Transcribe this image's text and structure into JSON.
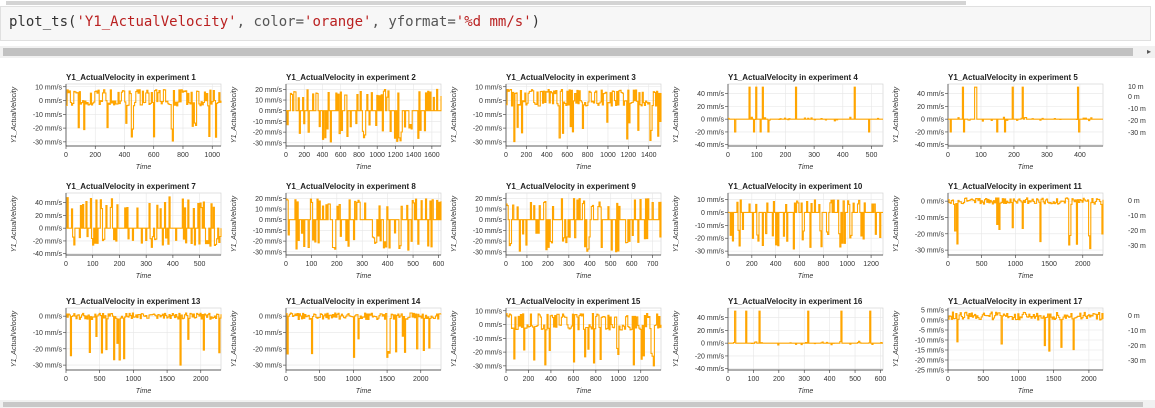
{
  "code_cell": {
    "fn": "plot_ts(",
    "arg1": "'Y1_ActualVelocity'",
    "sep1": ", color=",
    "arg2": "'orange'",
    "sep2": ", yformat=",
    "arg3": "'%d mm/s'",
    "end": ")"
  },
  "colors": {
    "line": "#ffa500",
    "grid": "#e6e6e6"
  },
  "chart_data": [
    {
      "type": "line",
      "title": "Y1_ActualVelocity in  experiment 1",
      "xlabel": "Time",
      "ylabel": "Y1_ActualVelocity",
      "xlim": [
        0,
        1060
      ],
      "xticks": [
        0,
        200,
        400,
        600,
        800,
        1000
      ],
      "ylim": [
        -33,
        12
      ],
      "yticks": [
        10,
        0,
        -10,
        -20,
        -30
      ],
      "pattern": "upper",
      "base": 0,
      "hi": 8,
      "lo": -30
    },
    {
      "type": "line",
      "title": "Y1_ActualVelocity in  experiment 2",
      "xlabel": "Time",
      "ylabel": "Y1_ActualVelocity",
      "xlim": [
        0,
        1700
      ],
      "xticks": [
        0,
        200,
        400,
        600,
        800,
        1000,
        1200,
        1400,
        1600
      ],
      "ylim": [
        -33,
        25
      ],
      "yticks": [
        20,
        10,
        0,
        -10,
        -20,
        -30
      ],
      "pattern": "dense",
      "base": 0,
      "hi": 20,
      "lo": -30
    },
    {
      "type": "line",
      "title": "Y1_ActualVelocity in  experiment 3",
      "xlabel": "Time",
      "ylabel": "Y1_ActualVelocity",
      "xlim": [
        0,
        1520
      ],
      "xticks": [
        0,
        200,
        400,
        600,
        800,
        1000,
        1200,
        1400
      ],
      "ylim": [
        -33,
        12
      ],
      "yticks": [
        10,
        0,
        -10,
        -20,
        -30
      ],
      "pattern": "upper",
      "base": 0,
      "hi": 8,
      "lo": -30
    },
    {
      "type": "line",
      "title": "Y1_ActualVelocity in  experiment 4",
      "xlabel": "Time",
      "ylabel": "Y1_ActualVelocity",
      "xlim": [
        0,
        540
      ],
      "xticks": [
        0,
        100,
        200,
        300,
        400,
        500
      ],
      "ylim": [
        -42,
        55
      ],
      "yticks": [
        40,
        20,
        0,
        -20,
        -40
      ],
      "pattern": "flat",
      "base": 0,
      "hi": 50,
      "lo": -20
    },
    {
      "type": "line",
      "title": "Y1_ActualVelocity in  experiment 5",
      "xlabel": "Time",
      "ylabel": "Y1_ActualVelocity",
      "xlim": [
        0,
        470
      ],
      "xticks": [
        0,
        100,
        200,
        300,
        400
      ],
      "ylim": [
        -42,
        55
      ],
      "yticks": [
        40,
        20,
        0,
        -20,
        -40
      ],
      "pattern": "flat",
      "base": 0,
      "hi": 50,
      "lo": -20
    },
    {
      "type": "line",
      "title": "Y1_ActualVelocity in  experiment 7",
      "xlabel": "Time",
      "ylabel": "Y1_ActualVelocity",
      "xlim": [
        0,
        580
      ],
      "xticks": [
        0,
        100,
        200,
        300,
        400,
        500
      ],
      "ylim": [
        -42,
        55
      ],
      "yticks": [
        40,
        20,
        0,
        -20,
        -40
      ],
      "pattern": "dense",
      "base": 0,
      "hi": 50,
      "lo": -30
    },
    {
      "type": "line",
      "title": "Y1_ActualVelocity in  experiment 8",
      "xlabel": "Time",
      "ylabel": "Y1_ActualVelocity",
      "xlim": [
        0,
        610
      ],
      "xticks": [
        0,
        100,
        200,
        300,
        400,
        500,
        600
      ],
      "ylim": [
        -33,
        25
      ],
      "yticks": [
        20,
        10,
        0,
        -10,
        -20,
        -30
      ],
      "pattern": "dense",
      "base": 0,
      "hi": 20,
      "lo": -30
    },
    {
      "type": "line",
      "title": "Y1_ActualVelocity in  experiment 9",
      "xlabel": "Time",
      "ylabel": "Y1_ActualVelocity",
      "xlim": [
        0,
        740
      ],
      "xticks": [
        0,
        100,
        200,
        300,
        400,
        500,
        600,
        700
      ],
      "ylim": [
        -33,
        25
      ],
      "yticks": [
        20,
        10,
        0,
        -10,
        -20,
        -30
      ],
      "pattern": "dense",
      "base": 0,
      "hi": 20,
      "lo": -30
    },
    {
      "type": "line",
      "title": "Y1_ActualVelocity in  experiment 10",
      "xlabel": "Time",
      "ylabel": "Y1_ActualVelocity",
      "xlim": [
        0,
        1300
      ],
      "xticks": [
        0,
        200,
        400,
        600,
        800,
        1000,
        1200
      ],
      "ylim": [
        -33,
        15
      ],
      "yticks": [
        10,
        0,
        -10,
        -20,
        -30
      ],
      "pattern": "dense",
      "base": 0,
      "hi": 10,
      "lo": -30
    },
    {
      "type": "line",
      "title": "Y1_ActualVelocity in  experiment 11",
      "xlabel": "Time",
      "ylabel": "Y1_ActualVelocity",
      "xlim": [
        0,
        2300
      ],
      "xticks": [
        0,
        500,
        1000,
        1500,
        2000
      ],
      "ylim": [
        -33,
        5
      ],
      "yticks": [
        0,
        -10,
        -20,
        -30
      ],
      "pattern": "top",
      "base": 0,
      "hi": 2,
      "lo": -30
    },
    {
      "type": "line",
      "title": "Y1_ActualVelocity in  experiment 13",
      "xlabel": "Time",
      "ylabel": "Y1_ActualVelocity",
      "xlim": [
        0,
        2300
      ],
      "xticks": [
        0,
        500,
        1000,
        1500,
        2000
      ],
      "ylim": [
        -33,
        5
      ],
      "yticks": [
        0,
        -10,
        -20,
        -30
      ],
      "pattern": "top",
      "base": 0,
      "hi": 2,
      "lo": -30
    },
    {
      "type": "line",
      "title": "Y1_ActualVelocity in  experiment 14",
      "xlabel": "Time",
      "ylabel": "Y1_ActualVelocity",
      "xlim": [
        0,
        2300
      ],
      "xticks": [
        0,
        500,
        1000,
        1500,
        2000
      ],
      "ylim": [
        -33,
        5
      ],
      "yticks": [
        0,
        -10,
        -20,
        -30
      ],
      "pattern": "top",
      "base": 0,
      "hi": 2,
      "lo": -30
    },
    {
      "type": "line",
      "title": "Y1_ActualVelocity in  experiment 15",
      "xlabel": "Time",
      "ylabel": "Y1_ActualVelocity",
      "xlim": [
        0,
        1380
      ],
      "xticks": [
        0,
        200,
        400,
        600,
        800,
        1000,
        1200
      ],
      "ylim": [
        -33,
        12
      ],
      "yticks": [
        10,
        0,
        -10,
        -20,
        -30
      ],
      "pattern": "upper",
      "base": 0,
      "hi": 8,
      "lo": -30
    },
    {
      "type": "line",
      "title": "Y1_ActualVelocity in  experiment 16",
      "xlabel": "Time",
      "ylabel": "Y1_ActualVelocity",
      "xlim": [
        0,
        610
      ],
      "xticks": [
        0,
        100,
        200,
        300,
        400,
        500,
        600
      ],
      "ylim": [
        -42,
        55
      ],
      "yticks": [
        40,
        20,
        0,
        -20,
        -40
      ],
      "pattern": "flat",
      "base": 0,
      "hi": 50,
      "lo": -30
    },
    {
      "type": "line",
      "title": "Y1_ActualVelocity in  experiment 17",
      "xlabel": "Time",
      "ylabel": "Y1_ActualVelocity",
      "xlim": [
        0,
        2200
      ],
      "xticks": [
        0,
        500,
        1000,
        1500,
        2000
      ],
      "ylim": [
        -25,
        6
      ],
      "yticks": [
        5,
        0,
        -5,
        -10,
        -15,
        -20,
        -25
      ],
      "pattern": "top",
      "base": 0,
      "hi": 4,
      "lo": -20
    }
  ],
  "partial_labels": {
    "tick_0": "0 m",
    "tick_m10": "-10 m",
    "tick_m20": "-20 m",
    "tick_m30": "-30 m",
    "tick_10": "10 m"
  }
}
